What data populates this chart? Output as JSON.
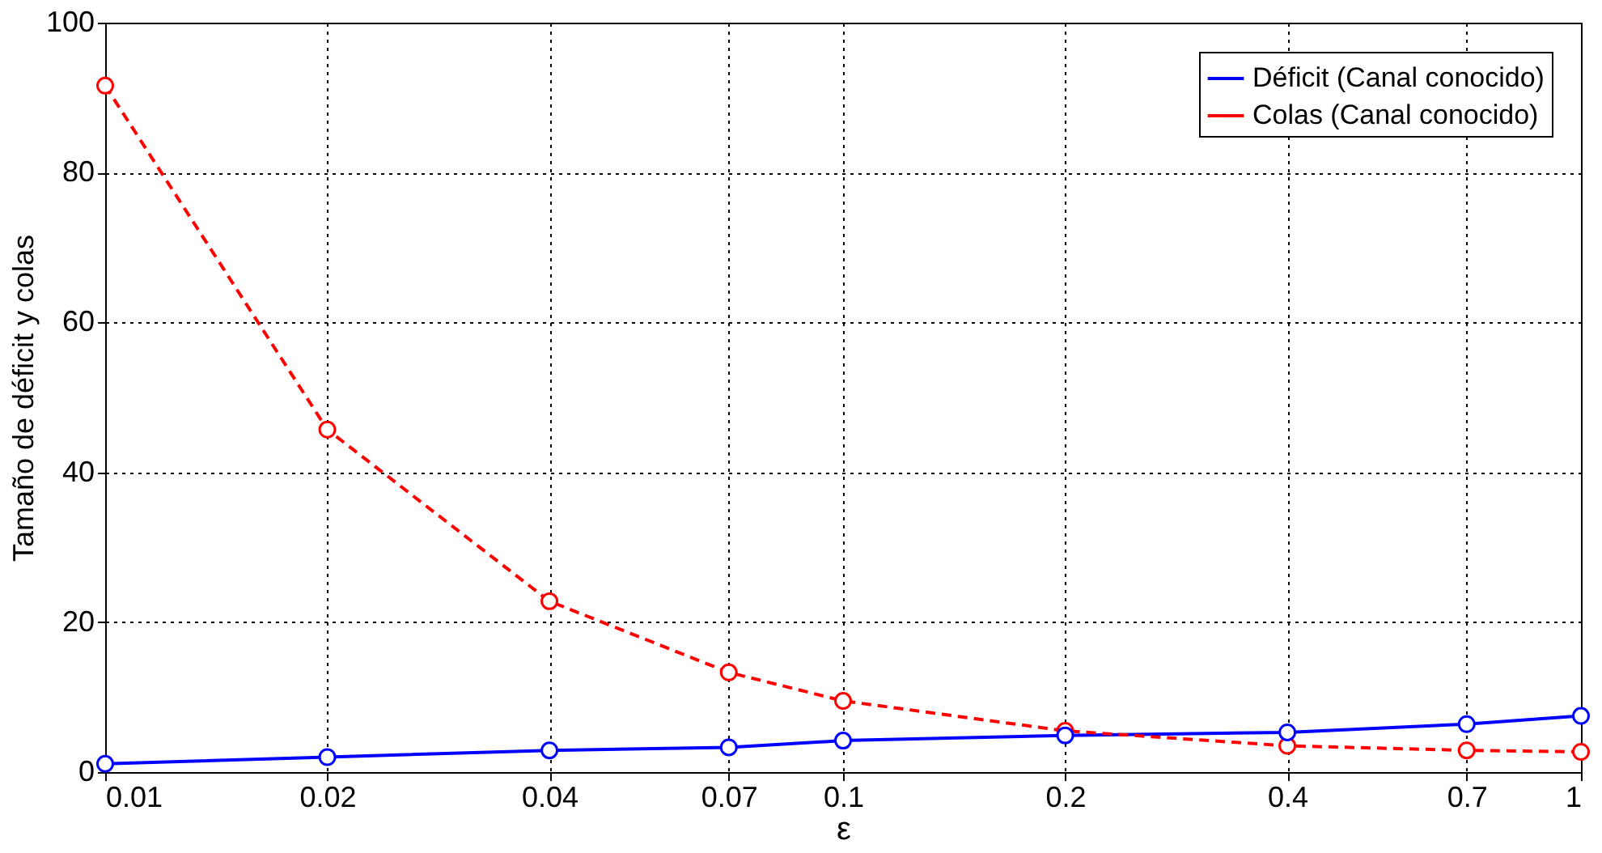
{
  "chart_data": {
    "type": "line",
    "xlabel": "ε",
    "ylabel": "Tamaño de déficit y colas",
    "x": [
      0.01,
      0.02,
      0.04,
      0.07,
      0.1,
      0.2,
      0.4,
      0.7,
      1
    ],
    "series": [
      {
        "name": "Déficit (Canal conocido)",
        "color": "#0000ff",
        "line_style": "solid",
        "values": [
          1.1,
          2,
          2.9,
          3.3,
          4.2,
          4.9,
          5.3,
          6.4,
          7.5
        ]
      },
      {
        "name": "Colas (Canal conocido)",
        "color": "#ff0000",
        "line_style": "dashed",
        "values": [
          91.6,
          45.7,
          22.8,
          13.3,
          9.5,
          5.5,
          3.5,
          2.9,
          2.7
        ]
      }
    ],
    "log": "x",
    "xlim": [
      0.01,
      1
    ],
    "xticks": [
      0.01,
      0.02,
      0.04,
      0.07,
      0.1,
      0.2,
      0.4,
      0.7,
      1
    ],
    "ylim": [
      0,
      100
    ],
    "yticks": [
      0,
      20,
      40,
      60,
      80,
      100
    ],
    "grid": true,
    "legend": "top right",
    "marker": "circle"
  }
}
